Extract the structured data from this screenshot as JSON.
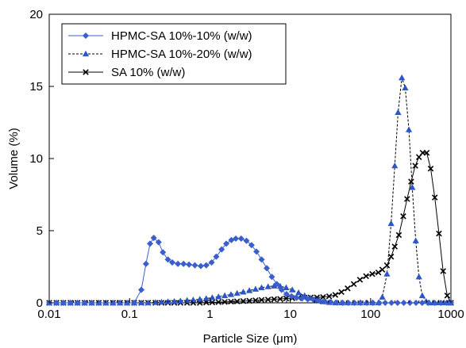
{
  "chart_data": {
    "type": "scatter",
    "xscale": "log",
    "xlim": [
      0.01,
      1000
    ],
    "ylim": [
      0,
      20
    ],
    "xticks": [
      0.01,
      0.1,
      1,
      10,
      100,
      1000
    ],
    "xtick_labels": [
      "0.01",
      "0.1",
      "1",
      "10",
      "100",
      "1000"
    ],
    "yticks": [
      0,
      5,
      10,
      15,
      20
    ],
    "ytick_labels": [
      "0",
      "5",
      "10",
      "15",
      "20"
    ],
    "xlabel": "Particle Size (μm)",
    "ylabel": "Volume (%)",
    "grid": false,
    "legend": "top-left",
    "series": [
      {
        "name": "HPMC-SA 10%-10% (w/w)",
        "color": "#3a5fcd",
        "marker": "diamond",
        "line": "solid",
        "points": [
          [
            0.01,
            0
          ],
          [
            0.0123,
            0
          ],
          [
            0.015,
            0
          ],
          [
            0.0184,
            0
          ],
          [
            0.0225,
            0
          ],
          [
            0.0276,
            0
          ],
          [
            0.0338,
            0
          ],
          [
            0.0414,
            0
          ],
          [
            0.0507,
            0
          ],
          [
            0.0621,
            0
          ],
          [
            0.0761,
            0
          ],
          [
            0.0932,
            0
          ],
          [
            0.114,
            0
          ],
          [
            0.14,
            0.9
          ],
          [
            0.16,
            2.7
          ],
          [
            0.18,
            4.1
          ],
          [
            0.2,
            4.5
          ],
          [
            0.23,
            4.2
          ],
          [
            0.26,
            3.5
          ],
          [
            0.3,
            3.0
          ],
          [
            0.34,
            2.8
          ],
          [
            0.4,
            2.7
          ],
          [
            0.47,
            2.7
          ],
          [
            0.55,
            2.65
          ],
          [
            0.65,
            2.6
          ],
          [
            0.77,
            2.55
          ],
          [
            0.9,
            2.6
          ],
          [
            1.05,
            2.8
          ],
          [
            1.2,
            3.2
          ],
          [
            1.4,
            3.7
          ],
          [
            1.6,
            4.1
          ],
          [
            1.85,
            4.35
          ],
          [
            2.1,
            4.45
          ],
          [
            2.45,
            4.45
          ],
          [
            2.85,
            4.3
          ],
          [
            3.3,
            4.0
          ],
          [
            3.8,
            3.55
          ],
          [
            4.4,
            3.0
          ],
          [
            5.1,
            2.4
          ],
          [
            5.9,
            1.8
          ],
          [
            6.8,
            1.3
          ],
          [
            7.8,
            0.9
          ],
          [
            9.0,
            0.6
          ],
          [
            10.4,
            0.45
          ],
          [
            12,
            0.35
          ],
          [
            14,
            0.3
          ],
          [
            16.5,
            0.25
          ],
          [
            19.5,
            0.2
          ],
          [
            23,
            0.15
          ],
          [
            27,
            0.1
          ],
          [
            32,
            0.05
          ],
          [
            38,
            0.02
          ],
          [
            45,
            0
          ],
          [
            53,
            0
          ],
          [
            63,
            0
          ],
          [
            75,
            0
          ],
          [
            90,
            0
          ],
          [
            107,
            0
          ],
          [
            128,
            0
          ],
          [
            152,
            0
          ],
          [
            182,
            0
          ],
          [
            217,
            0
          ],
          [
            259,
            0
          ],
          [
            309,
            0
          ],
          [
            368,
            0
          ],
          [
            439,
            0
          ],
          [
            524,
            0
          ],
          [
            625,
            0
          ],
          [
            746,
            0
          ],
          [
            890,
            0
          ],
          [
            1000,
            0
          ]
        ]
      },
      {
        "name": "HPMC-SA 10%-20% (w/w)",
        "color": "#2d55c8",
        "marker": "triangle",
        "line": "dashed",
        "points": [
          [
            0.01,
            0
          ],
          [
            0.0123,
            0
          ],
          [
            0.015,
            0
          ],
          [
            0.0184,
            0
          ],
          [
            0.0225,
            0
          ],
          [
            0.0276,
            0
          ],
          [
            0.0338,
            0
          ],
          [
            0.0414,
            0
          ],
          [
            0.0507,
            0
          ],
          [
            0.0621,
            0
          ],
          [
            0.0761,
            0
          ],
          [
            0.0932,
            0
          ],
          [
            0.114,
            0
          ],
          [
            0.14,
            0
          ],
          [
            0.17,
            0
          ],
          [
            0.21,
            0.03
          ],
          [
            0.25,
            0.05
          ],
          [
            0.3,
            0.08
          ],
          [
            0.36,
            0.1
          ],
          [
            0.43,
            0.13
          ],
          [
            0.52,
            0.17
          ],
          [
            0.62,
            0.2
          ],
          [
            0.75,
            0.25
          ],
          [
            0.9,
            0.3
          ],
          [
            1.07,
            0.36
          ],
          [
            1.28,
            0.42
          ],
          [
            1.53,
            0.5
          ],
          [
            1.83,
            0.58
          ],
          [
            2.18,
            0.66
          ],
          [
            2.6,
            0.75
          ],
          [
            3.1,
            0.85
          ],
          [
            3.7,
            0.95
          ],
          [
            4.4,
            1.05
          ],
          [
            5.3,
            1.12
          ],
          [
            6.3,
            1.17
          ],
          [
            7.5,
            1.15
          ],
          [
            8.9,
            1.05
          ],
          [
            10.6,
            0.9
          ],
          [
            12.7,
            0.7
          ],
          [
            15.1,
            0.5
          ],
          [
            18,
            0.32
          ],
          [
            21.5,
            0.18
          ],
          [
            25.6,
            0.08
          ],
          [
            30.5,
            0.03
          ],
          [
            36.4,
            0
          ],
          [
            43.4,
            0
          ],
          [
            51.8,
            0
          ],
          [
            61.8,
            0
          ],
          [
            73.7,
            0
          ],
          [
            87.9,
            0
          ],
          [
            105,
            0
          ],
          [
            125,
            0
          ],
          [
            140,
            0.4
          ],
          [
            160,
            2.0
          ],
          [
            180,
            5.5
          ],
          [
            200,
            9.5
          ],
          [
            220,
            13.2
          ],
          [
            245,
            15.6
          ],
          [
            270,
            14.9
          ],
          [
            300,
            12.0
          ],
          [
            330,
            8.0
          ],
          [
            365,
            4.3
          ],
          [
            400,
            1.8
          ],
          [
            440,
            0.5
          ],
          [
            490,
            0.1
          ],
          [
            540,
            0
          ],
          [
            600,
            0
          ],
          [
            700,
            0
          ],
          [
            820,
            0
          ],
          [
            1000,
            0
          ]
        ]
      },
      {
        "name": "SA 10% (w/w)",
        "color": "#000000",
        "marker": "x",
        "line": "solid",
        "points": [
          [
            0.01,
            0
          ],
          [
            0.0123,
            0
          ],
          [
            0.015,
            0
          ],
          [
            0.0184,
            0
          ],
          [
            0.0225,
            0
          ],
          [
            0.0276,
            0
          ],
          [
            0.0338,
            0
          ],
          [
            0.0414,
            0
          ],
          [
            0.0507,
            0
          ],
          [
            0.0621,
            0
          ],
          [
            0.0761,
            0
          ],
          [
            0.0932,
            0
          ],
          [
            0.114,
            0
          ],
          [
            0.14,
            0
          ],
          [
            0.17,
            0
          ],
          [
            0.21,
            0
          ],
          [
            0.25,
            0
          ],
          [
            0.3,
            0
          ],
          [
            0.36,
            0
          ],
          [
            0.43,
            0
          ],
          [
            0.52,
            0
          ],
          [
            0.62,
            0
          ],
          [
            0.75,
            0
          ],
          [
            0.9,
            0.02
          ],
          [
            1.07,
            0.03
          ],
          [
            1.28,
            0.05
          ],
          [
            1.53,
            0.06
          ],
          [
            1.83,
            0.08
          ],
          [
            2.18,
            0.1
          ],
          [
            2.6,
            0.12
          ],
          [
            3.1,
            0.14
          ],
          [
            3.7,
            0.17
          ],
          [
            4.4,
            0.2
          ],
          [
            5.3,
            0.22
          ],
          [
            6.3,
            0.25
          ],
          [
            7.5,
            0.27
          ],
          [
            8.9,
            0.3
          ],
          [
            10.6,
            0.32
          ],
          [
            12.7,
            0.34
          ],
          [
            15.1,
            0.36
          ],
          [
            18,
            0.37
          ],
          [
            21.5,
            0.38
          ],
          [
            25.6,
            0.4
          ],
          [
            30.5,
            0.45
          ],
          [
            36.4,
            0.55
          ],
          [
            43.4,
            0.75
          ],
          [
            51.8,
            1.0
          ],
          [
            61.8,
            1.3
          ],
          [
            73.7,
            1.6
          ],
          [
            87.9,
            1.85
          ],
          [
            105,
            2.0
          ],
          [
            125,
            2.1
          ],
          [
            140,
            2.3
          ],
          [
            160,
            2.6
          ],
          [
            180,
            3.2
          ],
          [
            200,
            3.9
          ],
          [
            225,
            4.7
          ],
          [
            255,
            6.0
          ],
          [
            285,
            7.2
          ],
          [
            320,
            8.4
          ],
          [
            360,
            9.5
          ],
          [
            400,
            10.1
          ],
          [
            445,
            10.4
          ],
          [
            500,
            10.4
          ],
          [
            560,
            9.3
          ],
          [
            630,
            7.3
          ],
          [
            710,
            4.8
          ],
          [
            800,
            2.2
          ],
          [
            900,
            0.5
          ],
          [
            1000,
            0
          ]
        ]
      }
    ]
  }
}
